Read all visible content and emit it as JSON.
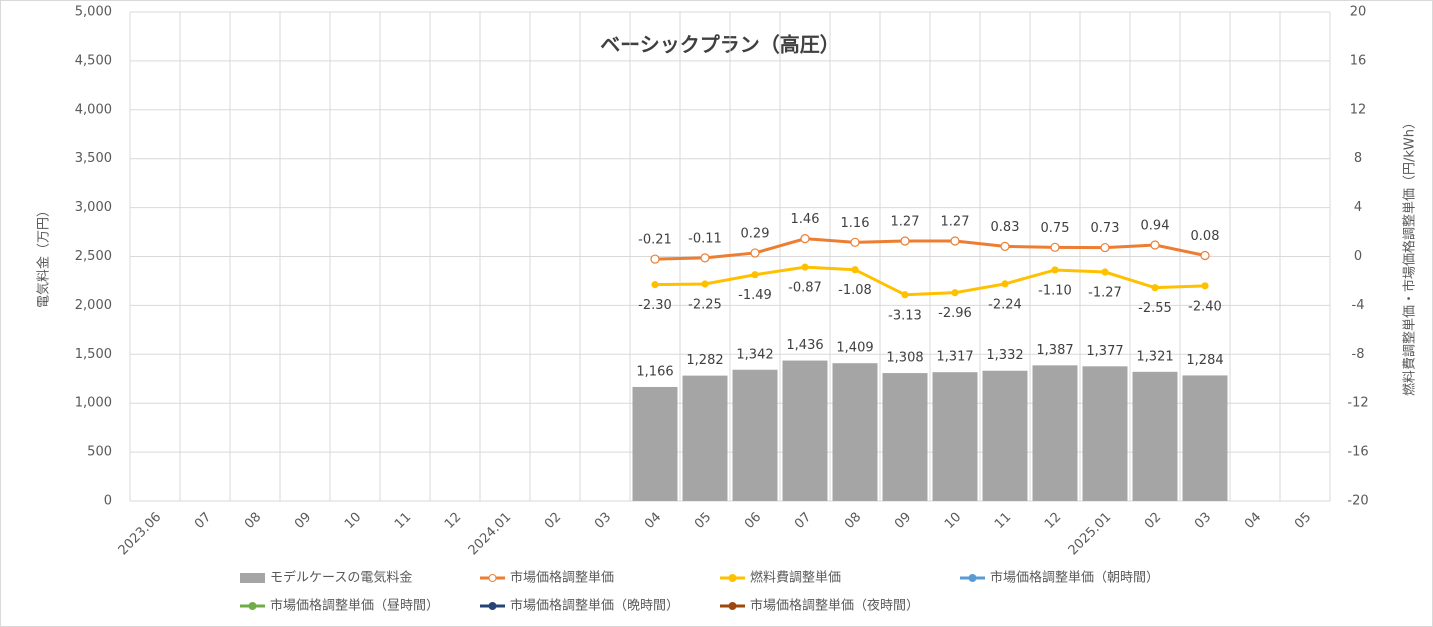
{
  "chart_data": {
    "type": "bar",
    "title": "ベーシックプラン（高圧）",
    "ylabel": "電気料金（万円）",
    "y2label": "燃料費調整単価・市場価格調整単価（円/kWh）",
    "categories": [
      "2023.06",
      "07",
      "08",
      "09",
      "10",
      "11",
      "12",
      "2024.01",
      "02",
      "03",
      "04",
      "05",
      "06",
      "07",
      "08",
      "09",
      "10",
      "11",
      "12",
      "2025.01",
      "02",
      "03",
      "04",
      "05"
    ],
    "ylim": [
      0,
      5000
    ],
    "yticks": [
      0,
      500,
      {
        "value": 1000,
        "label": "1,000"
      },
      {
        "value": 1500,
        "label": "1,500"
      },
      {
        "value": 2000,
        "label": "2,000"
      },
      {
        "value": 2500,
        "label": "2,500"
      },
      {
        "value": 3000,
        "label": "3,000"
      },
      {
        "value": 3500,
        "label": "3,500"
      },
      {
        "value": 4000,
        "label": "4,000"
      },
      {
        "value": 4500,
        "label": "4,500"
      },
      {
        "value": 5000,
        "label": "5,000"
      }
    ],
    "y2lim": [
      -20,
      20
    ],
    "y2ticks": [
      -20,
      -16,
      -12,
      -8,
      -4,
      0,
      4,
      8,
      12,
      16,
      20
    ],
    "grid": true,
    "series": [
      {
        "name": "モデルケースの電気料金",
        "type": "bar",
        "color": "#a5a5a5",
        "values": [
          null,
          null,
          null,
          null,
          null,
          null,
          null,
          null,
          null,
          null,
          1166,
          1282,
          1342,
          1436,
          1409,
          1308,
          1317,
          1332,
          1387,
          1377,
          1321,
          1284,
          null,
          null
        ],
        "value_labels": [
          null,
          null,
          null,
          null,
          null,
          null,
          null,
          null,
          null,
          null,
          "1,166",
          "1,282",
          "1,342",
          "1,436",
          "1,409",
          "1,308",
          "1,317",
          "1,332",
          "1,387",
          "1,377",
          "1,321",
          "1,284",
          null,
          null
        ]
      },
      {
        "name": "市場価格調整単価",
        "type": "line",
        "axis": "y2",
        "color": "#ed7d31",
        "marker": "open",
        "values": [
          null,
          null,
          null,
          null,
          null,
          null,
          null,
          null,
          null,
          null,
          -0.21,
          -0.11,
          0.29,
          1.46,
          1.16,
          1.27,
          1.27,
          0.83,
          0.75,
          0.73,
          0.94,
          0.08,
          null,
          null
        ]
      },
      {
        "name": "燃料費調整単価",
        "type": "line",
        "axis": "y2",
        "color": "#ffc000",
        "marker": "filled",
        "values": [
          null,
          null,
          null,
          null,
          null,
          null,
          null,
          null,
          null,
          null,
          -2.3,
          -2.25,
          -1.49,
          -0.87,
          -1.08,
          -3.13,
          -2.96,
          -2.24,
          -1.1,
          -1.27,
          -2.55,
          -2.4,
          null,
          null
        ],
        "value_labels": [
          null,
          null,
          null,
          null,
          null,
          null,
          null,
          null,
          null,
          null,
          "-2.30",
          "-2.25",
          "-1.49",
          "-0.87",
          "-1.08",
          "-3.13",
          "-2.96",
          "-2.24",
          "-1.10",
          "-1.27",
          "-2.55",
          "-2.40",
          null,
          null
        ]
      },
      {
        "name": "市場価格調整単価（朝時間）",
        "type": "line",
        "axis": "y2",
        "color": "#5b9bd5",
        "marker": "filled",
        "values": [
          null,
          null,
          null,
          null,
          null,
          null,
          null,
          null,
          null,
          null,
          null,
          null,
          null,
          null,
          null,
          null,
          null,
          null,
          null,
          null,
          null,
          null,
          null,
          null
        ]
      },
      {
        "name": "市場価格調整単価（昼時間）",
        "type": "line",
        "axis": "y2",
        "color": "#70ad47",
        "marker": "filled",
        "values": [
          null,
          null,
          null,
          null,
          null,
          null,
          null,
          null,
          null,
          null,
          null,
          null,
          null,
          null,
          null,
          null,
          null,
          null,
          null,
          null,
          null,
          null,
          null,
          null
        ]
      },
      {
        "name": "市場価格調整単価（晩時間）",
        "type": "line",
        "axis": "y2",
        "color": "#264478",
        "marker": "filled",
        "values": [
          null,
          null,
          null,
          null,
          null,
          null,
          null,
          null,
          null,
          null,
          null,
          null,
          null,
          null,
          null,
          null,
          null,
          null,
          null,
          null,
          null,
          null,
          null,
          null
        ]
      },
      {
        "name": "市場価格調整単価（夜時間）",
        "type": "line",
        "axis": "y2",
        "color": "#9e480e",
        "marker": "filled",
        "values": [
          null,
          null,
          null,
          null,
          null,
          null,
          null,
          null,
          null,
          null,
          null,
          null,
          null,
          null,
          null,
          null,
          null,
          null,
          null,
          null,
          null,
          null,
          null,
          null
        ]
      }
    ]
  }
}
